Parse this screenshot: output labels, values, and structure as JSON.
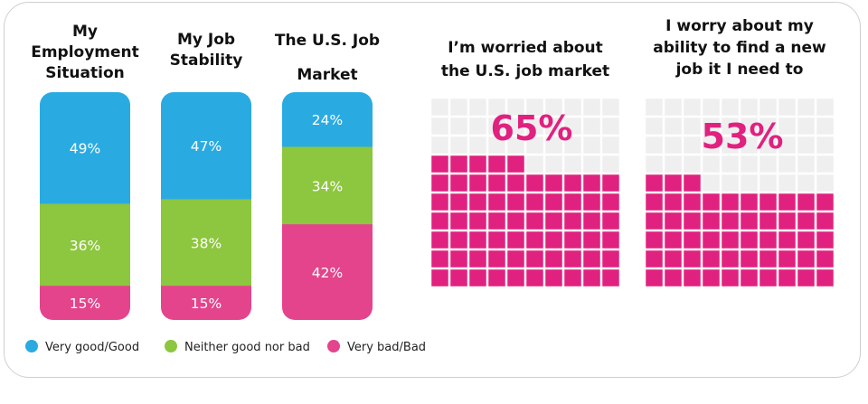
{
  "chart_data": [
    {
      "type": "bar",
      "stacked": true,
      "categories": [
        "My Employment Situation",
        "My Job Stability",
        "The U.S. Job Market"
      ],
      "category_lines": [
        [
          "My",
          "Employment",
          "Situation"
        ],
        [
          "My Job",
          "Stability"
        ],
        [
          "The U.S. Job",
          "Market"
        ]
      ],
      "series": [
        {
          "name": "Very good/Good",
          "color": "#29abe2",
          "values": [
            49,
            47,
            24
          ],
          "labels": [
            "49%",
            "47%",
            "24%"
          ]
        },
        {
          "name": "Neither good nor bad",
          "color": "#8dc63f",
          "values": [
            36,
            38,
            34
          ],
          "labels": [
            "36%",
            "38%",
            "34%"
          ]
        },
        {
          "name": "Very bad/Bad",
          "color": "#e4448c",
          "values": [
            15,
            15,
            42
          ],
          "labels": [
            "15%",
            "15%",
            "42%"
          ]
        }
      ],
      "legend": "bottom-left"
    },
    {
      "type": "waffle",
      "title": "I’m worried about the U.S. job market",
      "title_lines": [
        "I’m worried about",
        "the U.S. job market"
      ],
      "value": 65,
      "label": "65%",
      "grid": [
        10,
        10
      ],
      "fill_color": "#e0217f",
      "empty_color": "#efefef"
    },
    {
      "type": "waffle",
      "title": "I worry about my ability to find a new job it I need to",
      "title_lines": [
        "I worry about my",
        "ability to find a new",
        "job it I need to"
      ],
      "value": 53,
      "label": "53%",
      "grid": [
        10,
        10
      ],
      "fill_color": "#e0217f",
      "empty_color": "#efefef"
    }
  ]
}
